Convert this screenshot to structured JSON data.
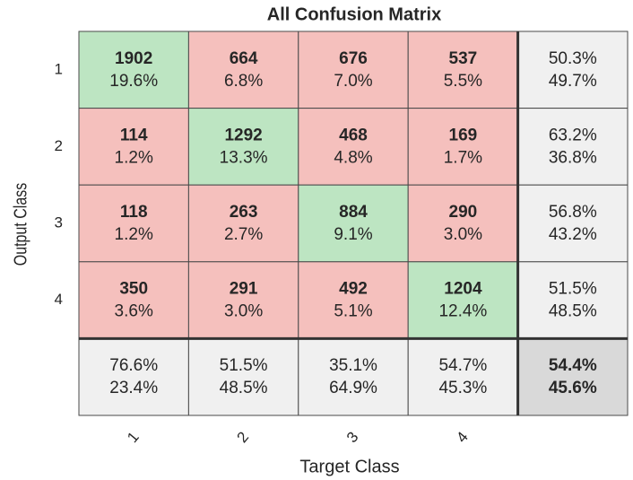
{
  "chart_data": {
    "type": "confusion_matrix",
    "title": "All Confusion Matrix",
    "xlabel": "Target Class",
    "ylabel": "Output Class",
    "categories": [
      "1",
      "2",
      "3",
      "4"
    ],
    "matrix": [
      [
        {
          "count": 1902,
          "percent": "19.6%"
        },
        {
          "count": 664,
          "percent": "6.8%"
        },
        {
          "count": 676,
          "percent": "7.0%"
        },
        {
          "count": 537,
          "percent": "5.5%"
        }
      ],
      [
        {
          "count": 114,
          "percent": "1.2%"
        },
        {
          "count": 1292,
          "percent": "13.3%"
        },
        {
          "count": 468,
          "percent": "4.8%"
        },
        {
          "count": 169,
          "percent": "1.7%"
        }
      ],
      [
        {
          "count": 118,
          "percent": "1.2%"
        },
        {
          "count": 263,
          "percent": "2.7%"
        },
        {
          "count": 884,
          "percent": "9.1%"
        },
        {
          "count": 290,
          "percent": "3.0%"
        }
      ],
      [
        {
          "count": 350,
          "percent": "3.6%"
        },
        {
          "count": 291,
          "percent": "3.0%"
        },
        {
          "count": 492,
          "percent": "5.1%"
        },
        {
          "count": 1204,
          "percent": "12.4%"
        }
      ]
    ],
    "row_summary": [
      [
        "50.3%",
        "49.7%"
      ],
      [
        "63.2%",
        "36.8%"
      ],
      [
        "56.8%",
        "43.2%"
      ],
      [
        "51.5%",
        "48.5%"
      ]
    ],
    "column_summary": [
      [
        "76.6%",
        "23.4%"
      ],
      [
        "51.5%",
        "48.5%"
      ],
      [
        "35.1%",
        "64.9%"
      ],
      [
        "54.7%",
        "45.3%"
      ]
    ],
    "overall": [
      "54.4%",
      "45.6%"
    ],
    "colors": {
      "correct": "#bde5c2",
      "incorrect": "#f5c0bd",
      "summary": "#f0f0f0",
      "overall": "#d9d9d9",
      "good_text": "#27ae3a",
      "bad_text": "#e53b30"
    }
  }
}
